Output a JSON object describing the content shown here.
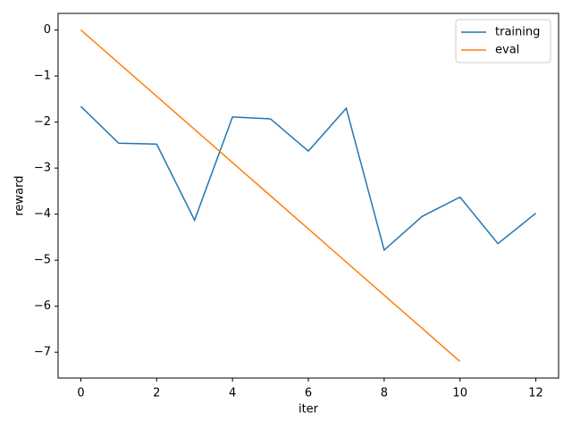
{
  "chart_data": {
    "type": "line",
    "xlabel": "iter",
    "ylabel": "reward",
    "series": [
      {
        "name": "training",
        "color": "#1f77b4",
        "x": [
          0,
          1,
          2,
          3,
          4,
          5,
          6,
          7,
          8,
          9,
          10,
          11,
          12
        ],
        "values": [
          -1.66,
          -2.46,
          -2.48,
          -4.13,
          -1.89,
          -1.93,
          -2.63,
          -1.7,
          -4.78,
          -4.05,
          -3.63,
          -4.64,
          -3.98
        ]
      },
      {
        "name": "eval",
        "color": "#ff7f0e",
        "x": [
          0,
          1,
          2,
          3,
          4,
          5,
          6,
          7,
          8,
          9,
          10
        ],
        "values": [
          0,
          -0.72,
          -1.44,
          -2.16,
          -2.88,
          -3.6,
          -4.32,
          -5.04,
          -5.76,
          -6.48,
          -7.2
        ]
      }
    ],
    "xlim": [
      -0.6,
      12.6
    ],
    "xticks": [
      0,
      2,
      4,
      6,
      8,
      10,
      12
    ],
    "ylim": [
      -7.56,
      0.36
    ],
    "yticks": [
      {
        "value": -7,
        "label": "−7"
      },
      {
        "value": -6,
        "label": "−6"
      },
      {
        "value": -5,
        "label": "−5"
      },
      {
        "value": -4,
        "label": "−4"
      },
      {
        "value": -3,
        "label": "−3"
      },
      {
        "value": -2,
        "label": "−2"
      },
      {
        "value": -1,
        "label": "−1"
      },
      0
    ],
    "legend": "upper right",
    "grid": false
  }
}
